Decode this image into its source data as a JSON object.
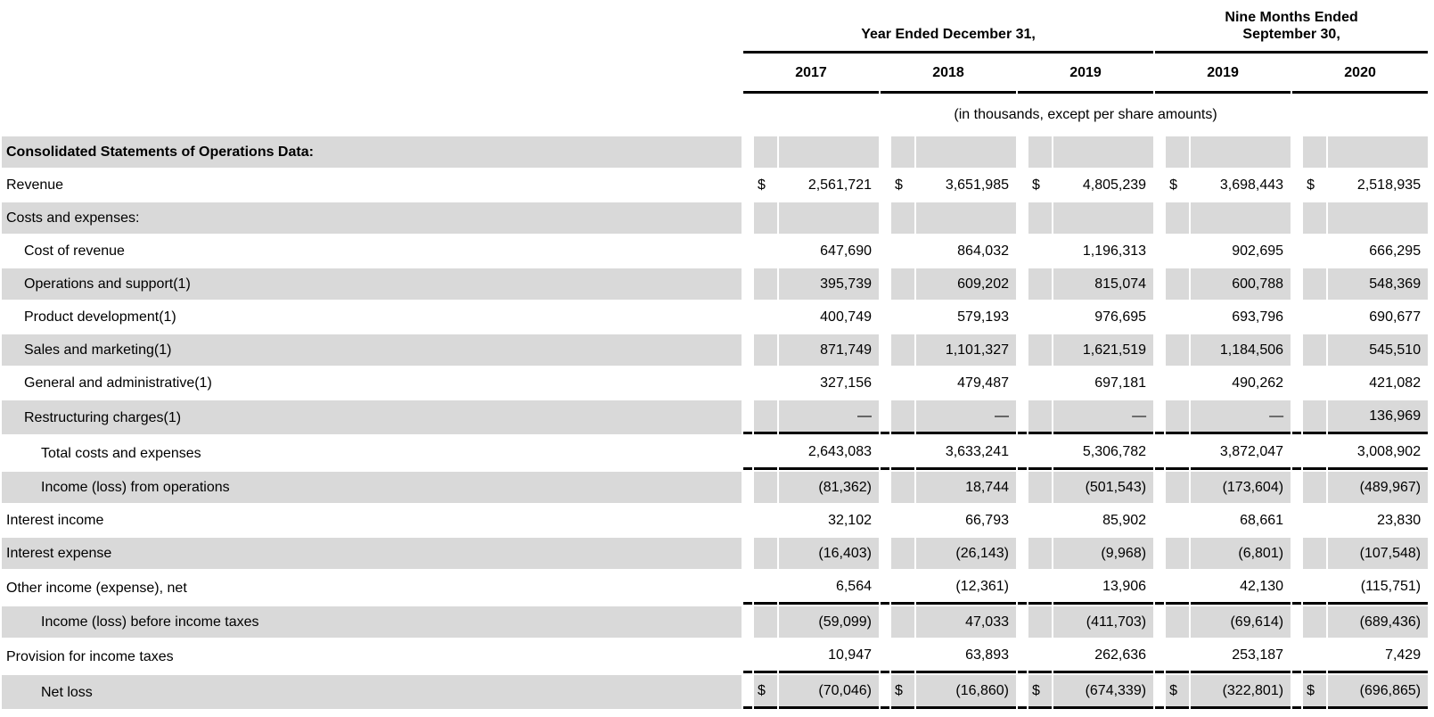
{
  "table": {
    "currency_symbol": "$",
    "shade_color": "#d9d9d9",
    "rule_color": "#000000",
    "col_groups": [
      {
        "label": "Year Ended December 31,",
        "years_spanned": 3
      },
      {
        "label": "Nine Months Ended\nSeptember 30,",
        "years_spanned": 2
      }
    ],
    "years": [
      "2017",
      "2018",
      "2019",
      "2019",
      "2020"
    ],
    "units_note": "(in thousands, except per share amounts)",
    "rows": [
      {
        "label": "Consolidated Statements of Operations Data:",
        "bold": true,
        "indent": 0,
        "shaded": true,
        "currency": false,
        "rule_below": false,
        "values": [
          "",
          "",
          "",
          "",
          ""
        ]
      },
      {
        "label": "Revenue",
        "bold": false,
        "indent": 0,
        "shaded": false,
        "currency": true,
        "rule_below": false,
        "values": [
          "2,561,721",
          "3,651,985",
          "4,805,239",
          "3,698,443",
          "2,518,935"
        ]
      },
      {
        "label": "Costs and expenses:",
        "bold": false,
        "indent": 0,
        "shaded": true,
        "currency": false,
        "rule_below": false,
        "values": [
          "",
          "",
          "",
          "",
          ""
        ]
      },
      {
        "label": "Cost of revenue",
        "bold": false,
        "indent": 1,
        "shaded": false,
        "currency": false,
        "rule_below": false,
        "values": [
          "647,690",
          "864,032",
          "1,196,313",
          "902,695",
          "666,295"
        ]
      },
      {
        "label": "Operations and support(1)",
        "bold": false,
        "indent": 1,
        "shaded": true,
        "currency": false,
        "rule_below": false,
        "values": [
          "395,739",
          "609,202",
          "815,074",
          "600,788",
          "548,369"
        ]
      },
      {
        "label": "Product development(1)",
        "bold": false,
        "indent": 1,
        "shaded": false,
        "currency": false,
        "rule_below": false,
        "values": [
          "400,749",
          "579,193",
          "976,695",
          "693,796",
          "690,677"
        ]
      },
      {
        "label": "Sales and marketing(1)",
        "bold": false,
        "indent": 1,
        "shaded": true,
        "currency": false,
        "rule_below": false,
        "values": [
          "871,749",
          "1,101,327",
          "1,621,519",
          "1,184,506",
          "545,510"
        ]
      },
      {
        "label": "General and administrative(1)",
        "bold": false,
        "indent": 1,
        "shaded": false,
        "currency": false,
        "rule_below": false,
        "values": [
          "327,156",
          "479,487",
          "697,181",
          "490,262",
          "421,082"
        ]
      },
      {
        "label": "Restructuring charges(1)",
        "bold": false,
        "indent": 1,
        "shaded": true,
        "currency": false,
        "rule_below": true,
        "values": [
          "—",
          "—",
          "—",
          "—",
          "136,969"
        ]
      },
      {
        "label": "Total costs and expenses",
        "bold": false,
        "indent": 2,
        "shaded": false,
        "currency": false,
        "rule_below": true,
        "values": [
          "2,643,083",
          "3,633,241",
          "5,306,782",
          "3,872,047",
          "3,008,902"
        ]
      },
      {
        "label": "Income (loss) from operations",
        "bold": false,
        "indent": 2,
        "shaded": true,
        "currency": false,
        "rule_below": false,
        "values": [
          "(81,362)",
          "18,744",
          "(501,543)",
          "(173,604)",
          "(489,967)"
        ]
      },
      {
        "label": "Interest income",
        "bold": false,
        "indent": 0,
        "shaded": false,
        "currency": false,
        "rule_below": false,
        "values": [
          "32,102",
          "66,793",
          "85,902",
          "68,661",
          "23,830"
        ]
      },
      {
        "label": "Interest expense",
        "bold": false,
        "indent": 0,
        "shaded": true,
        "currency": false,
        "rule_below": false,
        "values": [
          "(16,403)",
          "(26,143)",
          "(9,968)",
          "(6,801)",
          "(107,548)"
        ]
      },
      {
        "label": "Other income (expense), net",
        "bold": false,
        "indent": 0,
        "shaded": false,
        "currency": false,
        "rule_below": true,
        "values": [
          "6,564",
          "(12,361)",
          "13,906",
          "42,130",
          "(115,751)"
        ]
      },
      {
        "label": "Income (loss) before income taxes",
        "bold": false,
        "indent": 2,
        "shaded": true,
        "currency": false,
        "rule_below": false,
        "values": [
          "(59,099)",
          "47,033",
          "(411,703)",
          "(69,614)",
          "(689,436)"
        ]
      },
      {
        "label": "Provision for income taxes",
        "bold": false,
        "indent": 0,
        "shaded": false,
        "currency": false,
        "rule_below": true,
        "values": [
          "10,947",
          "63,893",
          "262,636",
          "253,187",
          "7,429"
        ]
      },
      {
        "label": "Net loss",
        "bold": false,
        "indent": 2,
        "shaded": true,
        "currency": true,
        "rule_below": true,
        "values": [
          "(70,046)",
          "(16,860)",
          "(674,339)",
          "(322,801)",
          "(696,865)"
        ]
      }
    ]
  }
}
